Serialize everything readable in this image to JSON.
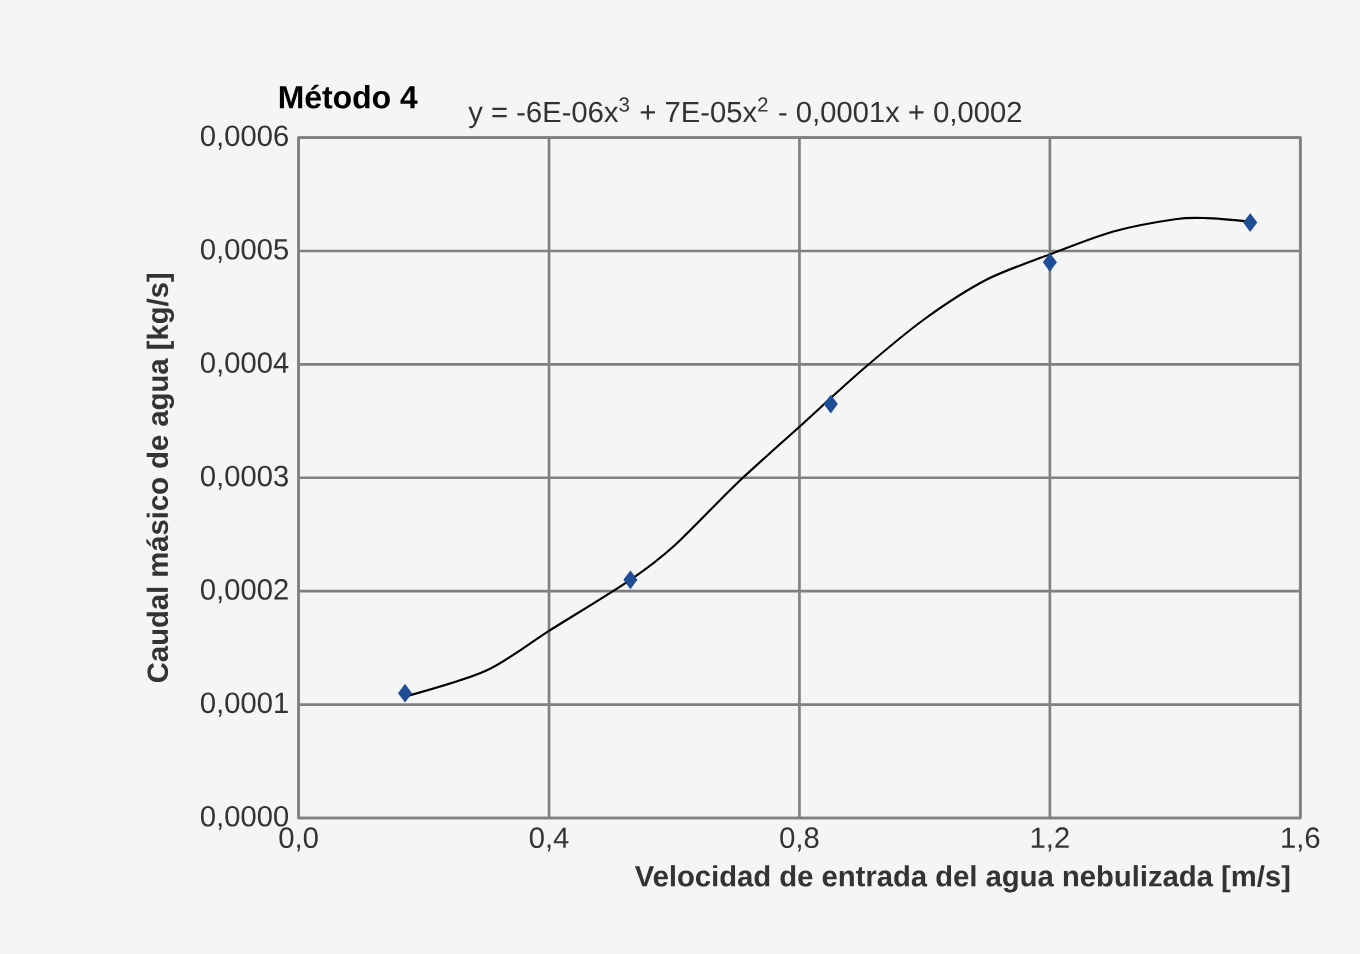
{
  "chart_data": {
    "type": "scatter",
    "title": "Método 4",
    "annotations": [
      "y = -6E-06x$^{3}$ + 7E-05x$^{2}$ - 0,0001x + 0,0002"
    ],
    "xlabel": "Velocidad de entrada del agua nebulizada [m/s]",
    "ylabel": "Caudal másico de agua [kg/s]",
    "series": [
      {
        "color": "#1f4e96",
        "marker": "diamond",
        "x": [
          0.17,
          0.53,
          0.85,
          1.2,
          1.52
        ],
        "values": [
          0.00011,
          0.00021,
          0.000365,
          0.00049,
          0.000525
        ]
      },
      {
        "type": "line",
        "color": "#000000",
        "marker": "none",
        "x": [
          0.17,
          0.3,
          0.4,
          0.53,
          0.6,
          0.7,
          0.8,
          0.9,
          1.0,
          1.1,
          1.2,
          1.3,
          1.4,
          1.45,
          1.52
        ],
        "values": [
          0.000107,
          0.00013,
          0.000165,
          0.00021,
          0.00024,
          0.000295,
          0.000345,
          0.000395,
          0.00044,
          0.000475,
          0.000497,
          0.000517,
          0.000528,
          0.000529,
          0.000526
        ]
      }
    ],
    "xlim": [
      0,
      1.6
    ],
    "ylim": [
      0,
      0.0006
    ],
    "xticks": [
      {
        "value": 0,
        "label": "0,0"
      },
      {
        "value": 0.4,
        "label": "0,4"
      },
      {
        "value": 0.8,
        "label": "0,8"
      },
      {
        "value": 1.2,
        "label": "1,2"
      },
      {
        "value": 1.6,
        "label": "1,6"
      }
    ],
    "yticks": [
      {
        "value": 0,
        "label": "0,0000"
      },
      {
        "value": 0.0001,
        "label": "0,0001"
      },
      {
        "value": 0.0002,
        "label": "0,0002"
      },
      {
        "value": 0.0003,
        "label": "0,0003"
      },
      {
        "value": 0.0004,
        "label": "0,0004"
      },
      {
        "value": 0.0005,
        "label": "0,0005"
      },
      {
        "value": 0.0006,
        "label": "0,0006"
      }
    ],
    "grid": true
  }
}
